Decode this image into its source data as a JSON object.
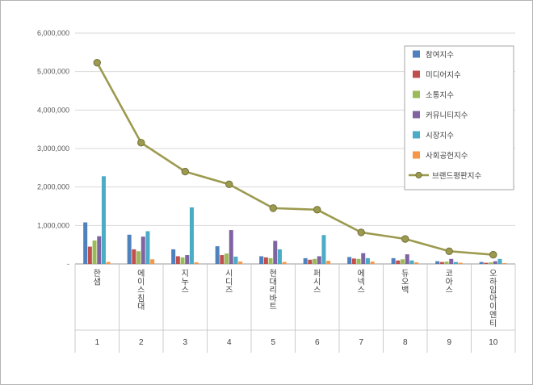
{
  "chart_data": {
    "type": "bar",
    "title": "",
    "categories": [
      "한샘",
      "에이스침대",
      "지누스",
      "시디즈",
      "현대리바트",
      "퍼시스",
      "에넥스",
      "듀오백",
      "코아스",
      "오하임아이엔티"
    ],
    "category_ranks": [
      "1",
      "2",
      "3",
      "4",
      "5",
      "6",
      "7",
      "8",
      "9",
      "10"
    ],
    "y_ticks": [
      "-",
      "1,000,000",
      "2,000,000",
      "3,000,000",
      "4,000,000",
      "5,000,000",
      "6,000,000"
    ],
    "ylim": [
      0,
      6000000
    ],
    "grid": true,
    "legend_position": "top-right",
    "series": [
      {
        "name": "참여지수",
        "type": "bar",
        "color": "#4F81BD",
        "values": [
          1080000,
          760000,
          380000,
          460000,
          200000,
          150000,
          180000,
          150000,
          70000,
          50000
        ]
      },
      {
        "name": "미디어지수",
        "type": "bar",
        "color": "#C0504D",
        "values": [
          450000,
          380000,
          200000,
          230000,
          170000,
          110000,
          140000,
          90000,
          50000,
          30000
        ]
      },
      {
        "name": "소통지수",
        "type": "bar",
        "color": "#9BBB59",
        "values": [
          610000,
          330000,
          170000,
          270000,
          150000,
          130000,
          130000,
          120000,
          60000,
          40000
        ]
      },
      {
        "name": "커뮤니티지수",
        "type": "bar",
        "color": "#8064A2",
        "values": [
          720000,
          710000,
          230000,
          880000,
          600000,
          200000,
          280000,
          250000,
          130000,
          70000
        ]
      },
      {
        "name": "시장지수",
        "type": "bar",
        "color": "#4BACC6",
        "values": [
          2280000,
          850000,
          1470000,
          190000,
          380000,
          750000,
          150000,
          90000,
          50000,
          130000
        ]
      },
      {
        "name": "사회공헌지수",
        "type": "bar",
        "color": "#F79646",
        "values": [
          50000,
          120000,
          40000,
          60000,
          50000,
          80000,
          60000,
          40000,
          30000,
          20000
        ]
      },
      {
        "name": "브랜드평판지수",
        "type": "line",
        "color": "#9C9A4E",
        "marker_stroke": "#73713A",
        "values": [
          5230000,
          3150000,
          2400000,
          2070000,
          1450000,
          1410000,
          820000,
          650000,
          330000,
          240000
        ]
      }
    ]
  }
}
